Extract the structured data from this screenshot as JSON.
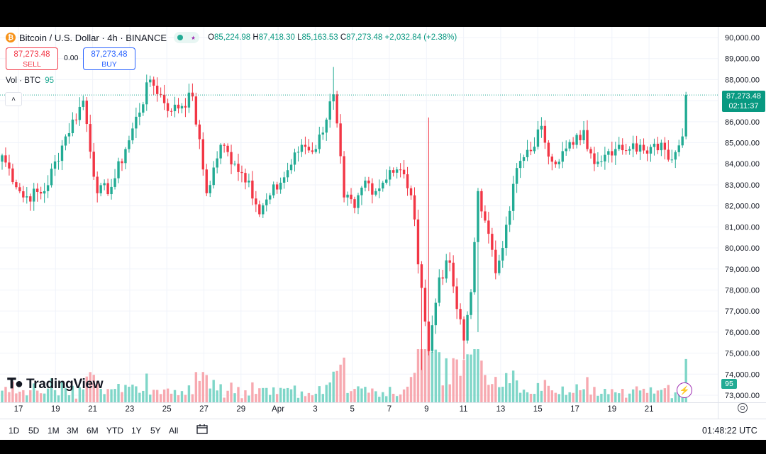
{
  "header": {
    "symbol_title": "Bitcoin / U.S. Dollar · 4h · BINANCE",
    "coin_glyph": "₿",
    "ohlc": {
      "open_label": "O",
      "open": "85,224.98",
      "high_label": "H",
      "high": "87,418.30",
      "low_label": "L",
      "low": "85,163.53",
      "close_label": "C",
      "close": "87,273.48",
      "change": "+2,032.84 (+2.38%)"
    }
  },
  "trade": {
    "sell_price": "87,273.48",
    "sell_label": "SELL",
    "spread": "0.00",
    "buy_price": "87,273.48",
    "buy_label": "BUY"
  },
  "volume_legend": {
    "label": "Vol · BTC",
    "value": "95"
  },
  "price_label": {
    "price": "87,273.48",
    "countdown": "02:11:37"
  },
  "volume_badge": "95",
  "logo_text": "TradingView",
  "timeframes": [
    "1D",
    "5D",
    "1M",
    "3M",
    "6M",
    "YTD",
    "1Y",
    "5Y",
    "All"
  ],
  "clock": "01:48:22 UTC",
  "colors": {
    "up": "#22ab94",
    "down": "#f23645",
    "up_volume": "#7fd6c8",
    "down_volume": "#f7a9b0",
    "accent": "#2962ff"
  },
  "chart_data": {
    "type": "candlestick",
    "interval": "4h",
    "ylim": [
      73000,
      90500
    ],
    "y_ticks": [
      "73,000.00",
      "74,000.00",
      "75,000.00",
      "76,000.00",
      "77,000.00",
      "78,000.00",
      "79,000.00",
      "80,000.00",
      "81,000.00",
      "82,000.00",
      "83,000.00",
      "84,000.00",
      "85,000.00",
      "86,000.00",
      "87,000.00",
      "88,000.00",
      "89,000.00",
      "90,000.00"
    ],
    "x_ticks": [
      "17",
      "19",
      "21",
      "23",
      "25",
      "27",
      "29",
      "Apr",
      "3",
      "5",
      "7",
      "9",
      "11",
      "13",
      "15",
      "17",
      "19",
      "21"
    ],
    "anchors": [
      [
        0,
        84400
      ],
      [
        6,
        82400
      ],
      [
        12,
        82700
      ],
      [
        18,
        85300
      ],
      [
        23,
        87000
      ],
      [
        27,
        82600
      ],
      [
        31,
        82900
      ],
      [
        35,
        84700
      ],
      [
        42,
        88000
      ],
      [
        48,
        86500
      ],
      [
        54,
        87200
      ],
      [
        58,
        82600
      ],
      [
        62,
        84900
      ],
      [
        66,
        84000
      ],
      [
        70,
        83200
      ],
      [
        73,
        81600
      ],
      [
        76,
        82500
      ],
      [
        79,
        83100
      ],
      [
        85,
        84900
      ],
      [
        89,
        84700
      ],
      [
        94,
        87300
      ],
      [
        97,
        82400
      ],
      [
        100,
        81900
      ],
      [
        103,
        83200
      ],
      [
        106,
        82700
      ],
      [
        110,
        83700
      ],
      [
        114,
        83500
      ],
      [
        116,
        82500
      ],
      [
        119,
        78100
      ],
      [
        121,
        75100
      ],
      [
        124,
        78600
      ],
      [
        127,
        79300
      ],
      [
        129,
        77100
      ],
      [
        131,
        75600
      ],
      [
        133,
        77900
      ],
      [
        135,
        82700
      ],
      [
        137,
        81300
      ],
      [
        140,
        78800
      ],
      [
        143,
        81100
      ],
      [
        146,
        83800
      ],
      [
        150,
        84600
      ],
      [
        153,
        85800
      ],
      [
        156,
        84100
      ],
      [
        159,
        84600
      ],
      [
        162,
        84900
      ],
      [
        165,
        85600
      ],
      [
        166,
        84700
      ],
      [
        169,
        84100
      ],
      [
        172,
        84600
      ],
      [
        175,
        84900
      ],
      [
        178,
        84700
      ],
      [
        181,
        84900
      ],
      [
        184,
        84800
      ],
      [
        187,
        85000
      ],
      [
        190,
        84200
      ],
      [
        193,
        85300
      ],
      [
        194,
        87270
      ]
    ],
    "volume_max": 1000
  }
}
